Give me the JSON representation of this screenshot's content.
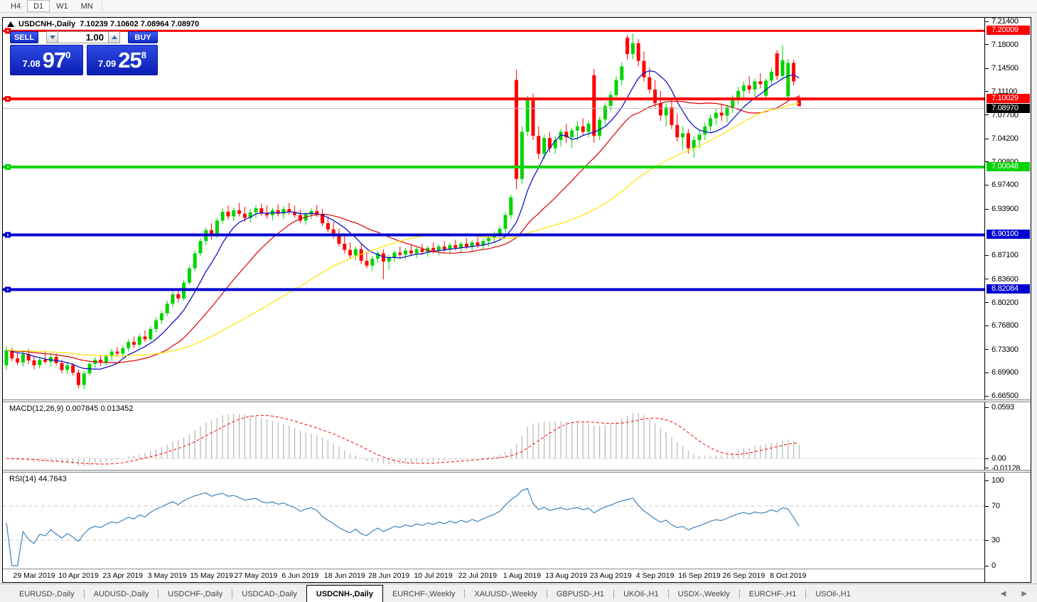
{
  "toolbar": {
    "timeframes": [
      {
        "label": "H4",
        "active": false
      },
      {
        "label": "D1",
        "active": true
      },
      {
        "label": "W1",
        "active": false
      },
      {
        "label": "MN",
        "active": false
      }
    ]
  },
  "window_title": {
    "symbol": "USDCNH-,Daily",
    "ohlc_text": "7.10239 7.10602 7.08964 7.08970"
  },
  "trade_panel": {
    "sell_label": "SELL",
    "buy_label": "BUY",
    "volume": "1.00",
    "sell_quote": {
      "small": "7.08",
      "big": "97",
      "sup": "0"
    },
    "buy_quote": {
      "small": "7.09",
      "big": "25",
      "sup": "8"
    }
  },
  "chart_data": {
    "type": "candlestick",
    "symbol": "USDCNH-",
    "timeframe": "Daily",
    "colors": {
      "bull": "#00d400",
      "bear": "#ff0000",
      "ma_fast": "#0000c8",
      "ma_mid": "#dd0000",
      "ma_slow": "#ffe400",
      "macd_hist": "#b6b6b6",
      "macd_signal": "#ff0000",
      "rsi_line": "#4080b8",
      "current_line": "#b8b8b8"
    },
    "price_axis": {
      "min": 6.665,
      "max": 7.214,
      "ticks": [
        {
          "value": 7.214,
          "label": "7.21400"
        },
        {
          "value": 7.18,
          "label": "7.18000"
        },
        {
          "value": 7.145,
          "label": "7.14500"
        },
        {
          "value": 7.111,
          "label": "7.11100"
        },
        {
          "value": 7.077,
          "label": "7.07700"
        },
        {
          "value": 7.042,
          "label": "7.04200"
        },
        {
          "value": 7.008,
          "label": "7.00800"
        },
        {
          "value": 6.974,
          "label": "6.97400"
        },
        {
          "value": 6.939,
          "label": "6.93900"
        },
        {
          "value": 6.871,
          "label": "6.87100"
        },
        {
          "value": 6.836,
          "label": "6.83600"
        },
        {
          "value": 6.802,
          "label": "6.80200"
        },
        {
          "value": 6.768,
          "label": "6.76800"
        },
        {
          "value": 6.733,
          "label": "6.73300"
        },
        {
          "value": 6.699,
          "label": "6.69900"
        },
        {
          "value": 6.665,
          "label": "6.66500"
        }
      ]
    },
    "hlines": [
      {
        "price": 7.20009,
        "label": "7.20009",
        "color": "#ff0000",
        "thickness": 3
      },
      {
        "price": 7.10029,
        "label": "7.10029",
        "color": "#ff0000",
        "thickness": 4
      },
      {
        "price": 7.00048,
        "label": "7.00048",
        "color": "#00d300",
        "thickness": 4
      },
      {
        "price": 6.901,
        "label": "6.90100",
        "color": "#0000d0",
        "thickness": 4
      },
      {
        "price": 6.82084,
        "label": "6.82084",
        "color": "#0000d0",
        "thickness": 4
      }
    ],
    "current_price": {
      "value": 7.0897,
      "label": "7.08970"
    },
    "date_labels": [
      {
        "label": "29 Mar 2019",
        "bar": 5
      },
      {
        "label": "10 Apr 2019",
        "bar": 13
      },
      {
        "label": "23 Apr 2019",
        "bar": 21
      },
      {
        "label": "3 May 2019",
        "bar": 29
      },
      {
        "label": "15 May 2019",
        "bar": 37
      },
      {
        "label": "27 May 2019",
        "bar": 45
      },
      {
        "label": "6 Jun 2019",
        "bar": 53
      },
      {
        "label": "18 Jun 2019",
        "bar": 61
      },
      {
        "label": "28 Jun 2019",
        "bar": 69
      },
      {
        "label": "10 Jul 2019",
        "bar": 77
      },
      {
        "label": "22 Jul 2019",
        "bar": 85
      },
      {
        "label": "1 Aug 2019",
        "bar": 93
      },
      {
        "label": "13 Aug 2019",
        "bar": 101
      },
      {
        "label": "23 Aug 2019",
        "bar": 109
      },
      {
        "label": "4 Sep 2019",
        "bar": 117
      },
      {
        "label": "16 Sep 2019",
        "bar": 125
      },
      {
        "label": "26 Sep 2019",
        "bar": 133
      },
      {
        "label": "8 Oct 2019",
        "bar": 141
      }
    ],
    "moving_averages": [
      {
        "name": "fast",
        "period": 8
      },
      {
        "name": "mid",
        "period": 20
      },
      {
        "name": "slow",
        "period": 45
      }
    ],
    "macd": {
      "label": "MACD(12,26,9)",
      "macd_value": "0.007845",
      "signal_value": "0.013452",
      "fast": 12,
      "slow": 26,
      "signal": 9,
      "scale_max": 0.0593,
      "scale_min": -0.01128,
      "axis_labels": [
        {
          "value": 0.0593,
          "label": "0.0593"
        },
        {
          "value": 0.0,
          "label": "0.00"
        },
        {
          "value": -0.01128,
          "label": "-0.01128"
        }
      ]
    },
    "rsi": {
      "label": "RSI(14)",
      "value": "44.7643",
      "period": 14,
      "levels": [
        70,
        30
      ],
      "axis_labels": [
        {
          "value": 100,
          "label": "100"
        },
        {
          "value": 70,
          "label": "70"
        },
        {
          "value": 30,
          "label": "30"
        },
        {
          "value": 0,
          "label": "0"
        }
      ]
    },
    "candles": [
      [
        6.71,
        6.738,
        6.703,
        6.732
      ],
      [
        6.732,
        6.736,
        6.716,
        6.72
      ],
      [
        6.72,
        6.728,
        6.71,
        6.714
      ],
      [
        6.714,
        6.73,
        6.708,
        6.726
      ],
      [
        6.726,
        6.734,
        6.712,
        6.717
      ],
      [
        6.717,
        6.724,
        6.704,
        6.71
      ],
      [
        6.71,
        6.722,
        6.705,
        6.718
      ],
      [
        6.718,
        6.731,
        6.712,
        6.715
      ],
      [
        6.715,
        6.726,
        6.708,
        6.722
      ],
      [
        6.722,
        6.727,
        6.71,
        6.713
      ],
      [
        6.713,
        6.718,
        6.698,
        6.703
      ],
      [
        6.703,
        6.715,
        6.697,
        6.71
      ],
      [
        6.71,
        6.713,
        6.695,
        6.699
      ],
      [
        6.699,
        6.704,
        6.676,
        6.681
      ],
      [
        6.681,
        6.702,
        6.674,
        6.698
      ],
      [
        6.698,
        6.716,
        6.694,
        6.712
      ],
      [
        6.712,
        6.722,
        6.706,
        6.718
      ],
      [
        6.718,
        6.725,
        6.709,
        6.714
      ],
      [
        6.714,
        6.726,
        6.71,
        6.723
      ],
      [
        6.723,
        6.734,
        6.717,
        6.73
      ],
      [
        6.73,
        6.737,
        6.722,
        6.727
      ],
      [
        6.727,
        6.739,
        6.721,
        6.735
      ],
      [
        6.735,
        6.748,
        6.73,
        6.744
      ],
      [
        6.744,
        6.752,
        6.735,
        6.74
      ],
      [
        6.74,
        6.756,
        6.736,
        6.752
      ],
      [
        6.752,
        6.761,
        6.744,
        6.748
      ],
      [
        6.748,
        6.767,
        6.745,
        6.763
      ],
      [
        6.763,
        6.78,
        6.758,
        6.776
      ],
      [
        6.776,
        6.79,
        6.77,
        6.786
      ],
      [
        6.786,
        6.805,
        6.782,
        6.8
      ],
      [
        6.8,
        6.818,
        6.795,
        6.814
      ],
      [
        6.814,
        6.822,
        6.802,
        6.808
      ],
      [
        6.808,
        6.835,
        6.805,
        6.831
      ],
      [
        6.831,
        6.856,
        6.828,
        6.852
      ],
      [
        6.852,
        6.878,
        6.848,
        6.874
      ],
      [
        6.874,
        6.896,
        6.87,
        6.892
      ],
      [
        6.892,
        6.912,
        6.886,
        6.908
      ],
      [
        6.908,
        6.918,
        6.894,
        6.9
      ],
      [
        6.9,
        6.926,
        6.896,
        6.922
      ],
      [
        6.922,
        6.94,
        6.917,
        6.935
      ],
      [
        6.935,
        6.944,
        6.923,
        6.928
      ],
      [
        6.928,
        6.941,
        6.921,
        6.937
      ],
      [
        6.937,
        6.948,
        6.928,
        6.932
      ],
      [
        6.932,
        6.942,
        6.92,
        6.926
      ],
      [
        6.926,
        6.939,
        6.919,
        6.934
      ],
      [
        6.934,
        6.945,
        6.926,
        6.94
      ],
      [
        6.94,
        6.947,
        6.929,
        6.933
      ],
      [
        6.933,
        6.944,
        6.925,
        6.93
      ],
      [
        6.93,
        6.941,
        6.922,
        6.937
      ],
      [
        6.937,
        6.946,
        6.928,
        6.932
      ],
      [
        6.932,
        6.943,
        6.924,
        6.939
      ],
      [
        6.939,
        6.948,
        6.93,
        6.934
      ],
      [
        6.934,
        6.944,
        6.926,
        6.93
      ],
      [
        6.93,
        6.938,
        6.918,
        6.922
      ],
      [
        6.922,
        6.935,
        6.916,
        6.931
      ],
      [
        6.931,
        6.94,
        6.924,
        6.936
      ],
      [
        6.936,
        6.945,
        6.927,
        6.931
      ],
      [
        6.931,
        6.939,
        6.914,
        6.918
      ],
      [
        6.918,
        6.928,
        6.905,
        6.909
      ],
      [
        6.909,
        6.92,
        6.896,
        6.9
      ],
      [
        6.9,
        6.91,
        6.884,
        6.888
      ],
      [
        6.888,
        6.899,
        6.874,
        6.879
      ],
      [
        6.879,
        6.89,
        6.866,
        6.871
      ],
      [
        6.871,
        6.884,
        6.864,
        6.88
      ],
      [
        6.88,
        6.888,
        6.858,
        6.863
      ],
      [
        6.863,
        6.875,
        6.852,
        6.856
      ],
      [
        6.856,
        6.87,
        6.848,
        6.866
      ],
      [
        6.866,
        6.878,
        6.86,
        6.874
      ],
      [
        6.874,
        6.88,
        6.836,
        6.862
      ],
      [
        6.862,
        6.872,
        6.85,
        6.868
      ],
      [
        6.868,
        6.879,
        6.861,
        6.875
      ],
      [
        6.875,
        6.884,
        6.868,
        6.872
      ],
      [
        6.872,
        6.882,
        6.865,
        6.878
      ],
      [
        6.878,
        6.887,
        6.87,
        6.874
      ],
      [
        6.874,
        6.883,
        6.867,
        6.88
      ],
      [
        6.88,
        6.888,
        6.872,
        6.876
      ],
      [
        6.876,
        6.885,
        6.869,
        6.882
      ],
      [
        6.882,
        6.89,
        6.874,
        6.878
      ],
      [
        6.878,
        6.887,
        6.871,
        6.884
      ],
      [
        6.884,
        6.892,
        6.876,
        6.88
      ],
      [
        6.88,
        6.889,
        6.873,
        6.886
      ],
      [
        6.886,
        6.894,
        6.878,
        6.882
      ],
      [
        6.882,
        6.891,
        6.875,
        6.888
      ],
      [
        6.888,
        6.896,
        6.88,
        6.884
      ],
      [
        6.884,
        6.893,
        6.877,
        6.89
      ],
      [
        6.89,
        6.898,
        6.882,
        6.886
      ],
      [
        6.886,
        6.895,
        6.879,
        6.892
      ],
      [
        6.892,
        6.901,
        6.884,
        6.897
      ],
      [
        6.897,
        6.906,
        6.889,
        6.902
      ],
      [
        6.902,
        6.914,
        6.895,
        6.91
      ],
      [
        6.91,
        6.934,
        6.904,
        6.93
      ],
      [
        6.93,
        6.96,
        6.924,
        6.956
      ],
      [
        7.128,
        7.143,
        6.968,
        6.983
      ],
      [
        6.983,
        7.06,
        6.976,
        7.052
      ],
      [
        7.052,
        7.105,
        7.046,
        7.098
      ],
      [
        7.098,
        7.108,
        7.04,
        7.046
      ],
      [
        7.046,
        7.06,
        7.012,
        7.02
      ],
      [
        7.02,
        7.048,
        7.012,
        7.043
      ],
      [
        7.043,
        7.052,
        7.022,
        7.028
      ],
      [
        7.028,
        7.046,
        7.02,
        7.04
      ],
      [
        7.04,
        7.056,
        7.03,
        7.052
      ],
      [
        7.052,
        7.064,
        7.036,
        7.044
      ],
      [
        7.044,
        7.058,
        7.028,
        7.054
      ],
      [
        7.054,
        7.068,
        7.04,
        7.06
      ],
      [
        7.06,
        7.072,
        7.046,
        7.052
      ],
      [
        7.052,
        7.068,
        7.044,
        7.064
      ],
      [
        7.135,
        7.144,
        7.036,
        7.046
      ],
      [
        7.046,
        7.074,
        7.04,
        7.07
      ],
      [
        7.07,
        7.094,
        7.062,
        7.09
      ],
      [
        7.09,
        7.112,
        7.082,
        7.106
      ],
      [
        7.106,
        7.134,
        7.1,
        7.128
      ],
      [
        7.128,
        7.154,
        7.12,
        7.148
      ],
      [
        7.19,
        7.194,
        7.158,
        7.166
      ],
      [
        7.166,
        7.196,
        7.158,
        7.182
      ],
      [
        7.182,
        7.188,
        7.148,
        7.156
      ],
      [
        7.156,
        7.17,
        7.126,
        7.132
      ],
      [
        7.132,
        7.146,
        7.108,
        7.114
      ],
      [
        7.114,
        7.128,
        7.088,
        7.094
      ],
      [
        7.094,
        7.112,
        7.068,
        7.076
      ],
      [
        7.076,
        7.094,
        7.06,
        7.088
      ],
      [
        7.088,
        7.098,
        7.056,
        7.062
      ],
      [
        7.062,
        7.078,
        7.038,
        7.044
      ],
      [
        7.044,
        7.06,
        7.026,
        7.05
      ],
      [
        7.05,
        7.056,
        7.02,
        7.028
      ],
      [
        7.028,
        7.046,
        7.014,
        7.04
      ],
      [
        7.04,
        7.054,
        7.028,
        7.048
      ],
      [
        7.048,
        7.066,
        7.04,
        7.06
      ],
      [
        7.06,
        7.078,
        7.052,
        7.072
      ],
      [
        7.072,
        7.086,
        7.062,
        7.08
      ],
      [
        7.08,
        7.094,
        7.068,
        7.076
      ],
      [
        7.076,
        7.092,
        7.066,
        7.088
      ],
      [
        7.088,
        7.106,
        7.08,
        7.1
      ],
      [
        7.1,
        7.118,
        7.092,
        7.112
      ],
      [
        7.112,
        7.126,
        7.102,
        7.12
      ],
      [
        7.12,
        7.134,
        7.108,
        7.114
      ],
      [
        7.114,
        7.13,
        7.104,
        7.126
      ],
      [
        7.126,
        7.138,
        7.116,
        7.122
      ],
      [
        7.105,
        7.13,
        7.098,
        7.127
      ],
      [
        7.127,
        7.146,
        7.12,
        7.14
      ],
      [
        7.167,
        7.172,
        7.128,
        7.134
      ],
      [
        7.134,
        7.179,
        7.127,
        7.157
      ],
      [
        7.104,
        7.159,
        7.098,
        7.153
      ],
      [
        7.153,
        7.158,
        7.12,
        7.126
      ],
      [
        7.10239,
        7.10602,
        7.08964,
        7.0897
      ]
    ]
  },
  "tabs": {
    "items": [
      {
        "label": "EURUSD-,Daily",
        "active": false
      },
      {
        "label": "AUDUSD-,Daily",
        "active": false
      },
      {
        "label": "USDCHF-,Daily",
        "active": false
      },
      {
        "label": "USDCAD-,Daily",
        "active": false
      },
      {
        "label": "USDCNH-,Daily",
        "active": true
      },
      {
        "label": "EURCHF-,Weekly",
        "active": false
      },
      {
        "label": "XAUUSD-,Weekly",
        "active": false
      },
      {
        "label": "GBPUSD-,H1",
        "active": false
      },
      {
        "label": "UKOil-,H1",
        "active": false
      },
      {
        "label": "USDX-,Weekly",
        "active": false
      },
      {
        "label": "EURCHF-,H1",
        "active": false
      },
      {
        "label": "USOil-,H1",
        "active": false
      }
    ]
  }
}
